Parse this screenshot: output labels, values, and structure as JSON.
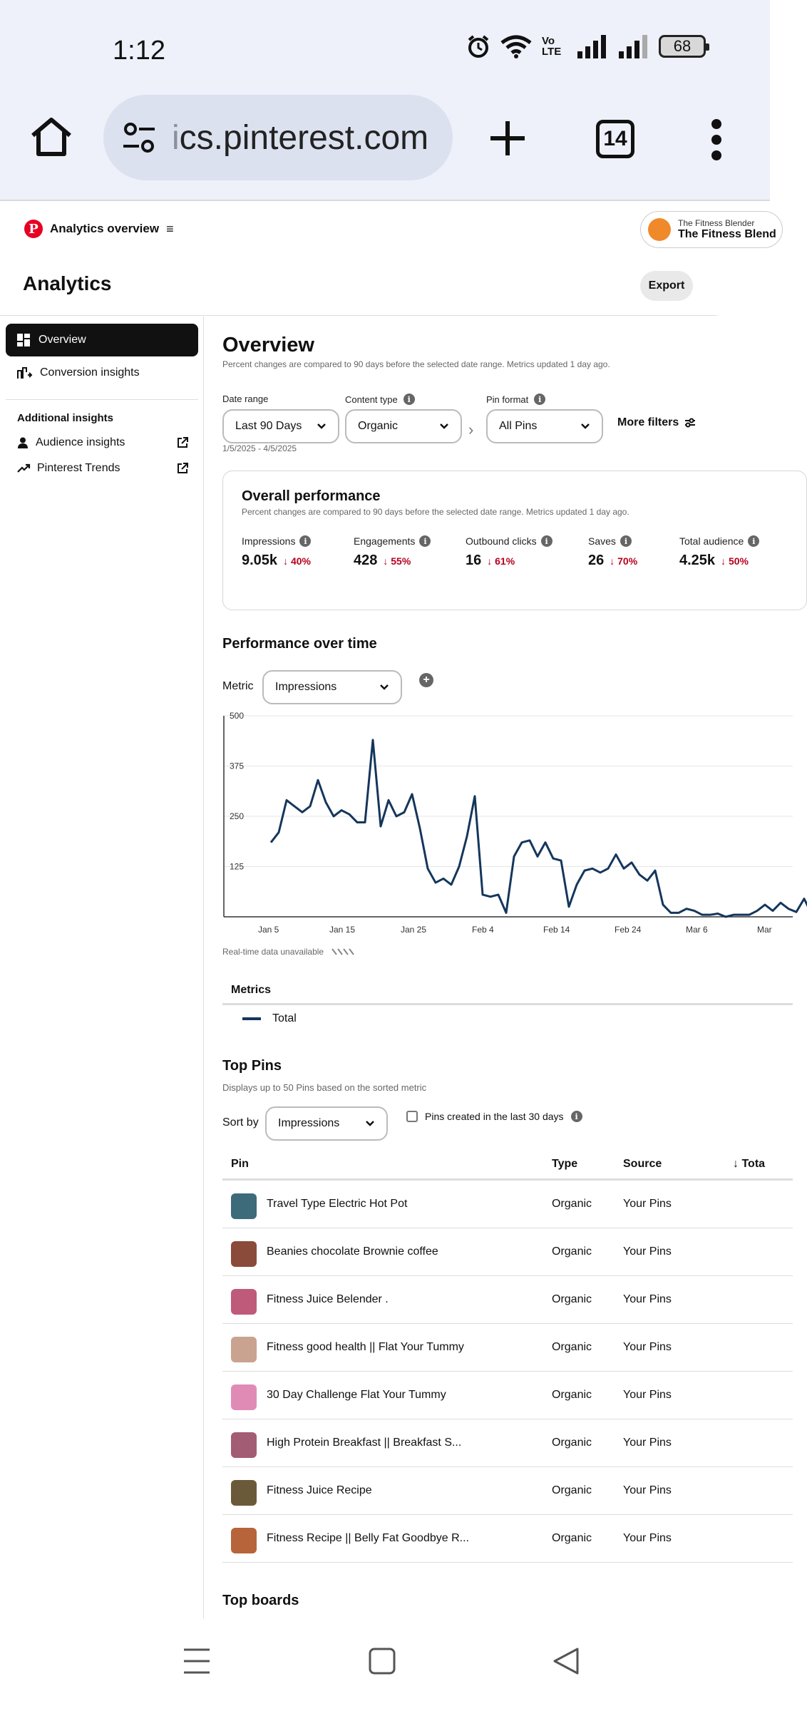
{
  "status": {
    "time": "1:12",
    "battery": "68",
    "network_label": "Vo LTE"
  },
  "browser": {
    "url_fade": "i",
    "url_main": "cs.pinterest.com",
    "tab_count": "14"
  },
  "topnav": {
    "section": "Analytics overview",
    "account_small": "The Fitness Blender",
    "account_big": "The Fitness Blend"
  },
  "header": {
    "title": "Analytics",
    "export_label": "Export"
  },
  "sidebar": {
    "items": [
      {
        "label": "Overview",
        "icon": "dashboard-icon",
        "active": true
      },
      {
        "label": "Conversion insights",
        "icon": "conversion-icon",
        "active": false
      }
    ],
    "additional_heading": "Additional insights",
    "links": [
      {
        "label": "Audience insights",
        "icon": "person-icon"
      },
      {
        "label": "Pinterest Trends",
        "icon": "trend-icon"
      }
    ]
  },
  "overview": {
    "title": "Overview",
    "subtitle": "Percent changes are compared to 90 days before the selected date range. Metrics updated 1 day ago.",
    "filters": {
      "date_range_label": "Date range",
      "date_range_value": "Last 90 Days",
      "date_hint": "1/5/2025 - 4/5/2025",
      "content_type_label": "Content type",
      "content_type_value": "Organic",
      "pin_format_label": "Pin format",
      "pin_format_value": "All Pins",
      "more_filters": "More filters"
    }
  },
  "performance": {
    "title": "Overall performance",
    "subtitle": "Percent changes are compared to 90 days before the selected date range. Metrics updated 1 day ago.",
    "metrics": [
      {
        "label": "Impressions",
        "value": "9.05k",
        "change": "40%"
      },
      {
        "label": "Engagements",
        "value": "428",
        "change": "55%"
      },
      {
        "label": "Outbound clicks",
        "value": "16",
        "change": "61%"
      },
      {
        "label": "Saves",
        "value": "26",
        "change": "70%"
      },
      {
        "label": "Total audience",
        "value": "4.25k",
        "change": "50%"
      }
    ]
  },
  "over_time": {
    "title": "Performance over time",
    "metric_label": "Metric",
    "metric_value": "Impressions",
    "realtime_note": "Real-time data unavailable",
    "metrics_heading": "Metrics",
    "legend_total": "Total"
  },
  "chart_data": {
    "type": "line",
    "title": "",
    "xlabel": "",
    "ylabel": "",
    "yticks": [
      "500",
      "375",
      "250",
      "125"
    ],
    "ylim": [
      0,
      500
    ],
    "x_tick_labels": [
      "Jan 5",
      "Jan 15",
      "Jan 25",
      "Feb 4",
      "Feb 14",
      "Feb 24",
      "Mar 6",
      "Mar"
    ],
    "grid": true,
    "series": [
      {
        "name": "Total",
        "color": "#15365c",
        "values": [
          185,
          210,
          290,
          275,
          260,
          275,
          340,
          285,
          250,
          265,
          255,
          235,
          235,
          440,
          225,
          290,
          250,
          260,
          305,
          220,
          120,
          85,
          95,
          80,
          125,
          200,
          300,
          55,
          50,
          55,
          10,
          150,
          185,
          190,
          150,
          185,
          145,
          140,
          25,
          80,
          115,
          120,
          110,
          120,
          155,
          120,
          135,
          105,
          90,
          115,
          30,
          10,
          10,
          20,
          15,
          5,
          5,
          8,
          0,
          5,
          5,
          5,
          15,
          30,
          15,
          35,
          20,
          12,
          45,
          5,
          15,
          5
        ]
      }
    ]
  },
  "top_pins": {
    "title": "Top Pins",
    "subtitle": "Displays up to 50 Pins based on the sorted metric",
    "sort_label": "Sort by",
    "sort_value": "Impressions",
    "recent_checkbox": "Pins created in the last 30 days",
    "columns": {
      "pin": "Pin",
      "type": "Type",
      "source": "Source",
      "total": "Tota"
    },
    "rows": [
      {
        "name": "Travel Type Electric Hot Pot",
        "type": "Organic",
        "source": "Your Pins",
        "thumb_color": "#3d6b7a"
      },
      {
        "name": "Beanies chocolate Brownie coffee",
        "type": "Organic",
        "source": "Your Pins",
        "thumb_color": "#8a4b3a"
      },
      {
        "name": "Fitness Juice Belender .",
        "type": "Organic",
        "source": "Your Pins",
        "thumb_color": "#c05a7a"
      },
      {
        "name": "Fitness good health || Flat Your Tummy",
        "type": "Organic",
        "source": "Your Pins",
        "thumb_color": "#c9a38f"
      },
      {
        "name": "30 Day Challenge Flat Your Tummy",
        "type": "Organic",
        "source": "Your Pins",
        "thumb_color": "#e08bb6"
      },
      {
        "name": "High Protein Breakfast || Breakfast S...",
        "type": "Organic",
        "source": "Your Pins",
        "thumb_color": "#a25c74"
      },
      {
        "name": "Fitness Juice Recipe",
        "type": "Organic",
        "source": "Your Pins",
        "thumb_color": "#6b5a3a"
      },
      {
        "name": "Fitness Recipe || Belly Fat Goodbye R...",
        "type": "Organic",
        "source": "Your Pins",
        "thumb_color": "#b8643a"
      }
    ]
  },
  "top_boards": {
    "title": "Top boards"
  }
}
